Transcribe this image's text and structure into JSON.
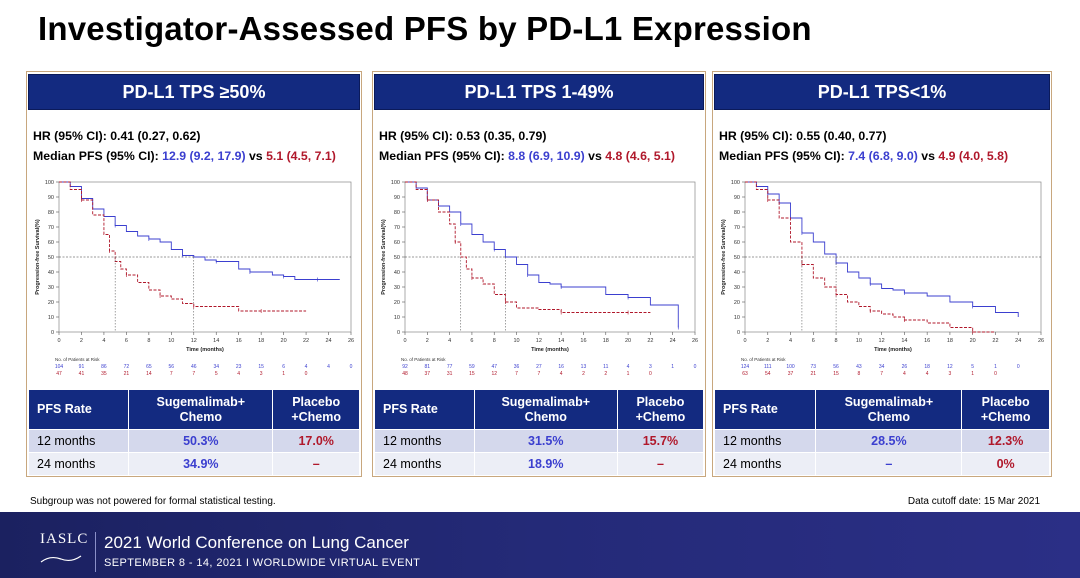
{
  "title": "Investigator-Assessed PFS by PD-L1 Expression",
  "footnote": "Subgroup was not powered for formal statistical testing.",
  "cutoff": "Data cutoff date: 15 Mar 2021",
  "banner": {
    "logo": "IASLC",
    "conference": "2021 World Conference on Lung Cancer",
    "subtitle": "SEPTEMBER 8 - 14, 2021 I WORLDWIDE VIRTUAL EVENT"
  },
  "colors": {
    "treatment": "#3b3fcf",
    "placebo": "#b0182b",
    "header": "#132a80"
  },
  "table_headers": {
    "rate": "PFS Rate",
    "suge": "Sugemalimab+\nChemo",
    "placebo": "Placebo\n+Chemo"
  },
  "panels": [
    {
      "header": "PD-L1 TPS ≥50%",
      "hr": "HR (95% CI): 0.41 (0.27, 0.62)",
      "median_label": "Median PFS (95% CI): ",
      "median_suge": "12.9 (9.2, 17.9)",
      "vs": " vs ",
      "median_placebo": "5.1 (4.5, 7.1)",
      "rows": [
        {
          "label": "12 months",
          "suge": "50.3%",
          "placebo": "17.0%"
        },
        {
          "label": "24 months",
          "suge": "34.9%",
          "placebo": "–"
        }
      ]
    },
    {
      "header": "PD-L1 TPS 1-49%",
      "hr": "HR (95% CI): 0.53 (0.35, 0.79)",
      "median_label": "Median PFS (95% CI): ",
      "median_suge": "8.8 (6.9, 10.9)",
      "vs": " vs ",
      "median_placebo": "4.8 (4.6, 5.1)",
      "rows": [
        {
          "label": "12 months",
          "suge": "31.5%",
          "placebo": "15.7%"
        },
        {
          "label": "24 months",
          "suge": "18.9%",
          "placebo": "–"
        }
      ]
    },
    {
      "header": "PD-L1 TPS<1%",
      "hr": "HR (95% CI): 0.55 (0.40, 0.77)",
      "median_label": "Median PFS (95% CI): ",
      "median_suge": "7.4 (6.8, 9.0)",
      "vs": " vs ",
      "median_placebo": "4.9 (4.0, 5.8)",
      "rows": [
        {
          "label": "12 months",
          "suge": "28.5%",
          "placebo": "12.3%"
        },
        {
          "label": "24 months",
          "suge": "–",
          "placebo": "0%"
        }
      ]
    }
  ],
  "chart_data": [
    {
      "type": "line",
      "title": "PD-L1 TPS ≥50%",
      "xlabel": "Time (months)",
      "ylabel": "Progression-free Survival(%)",
      "xlim": [
        0,
        26
      ],
      "ylim": [
        0,
        100
      ],
      "xticks": [
        0,
        2,
        4,
        6,
        8,
        10,
        12,
        14,
        16,
        18,
        20,
        22,
        24,
        26
      ],
      "yticks": [
        0,
        10,
        20,
        30,
        40,
        50,
        60,
        70,
        80,
        90,
        100
      ],
      "reference_line": 50,
      "risk_label": "No. of Patients at Risk",
      "risk_times": [
        0,
        2,
        4,
        6,
        8,
        10,
        12,
        14,
        16,
        18,
        20,
        22,
        24,
        26
      ],
      "series": [
        {
          "name": "Sugemalimab+Chemo",
          "dashed": false,
          "x": [
            0,
            1,
            2,
            3,
            4,
            5,
            6,
            7,
            8,
            9,
            10,
            11,
            12,
            13,
            14,
            15,
            16,
            17,
            18,
            19,
            20,
            21,
            22,
            23,
            24,
            25
          ],
          "y": [
            100,
            97,
            89,
            82,
            77,
            71,
            67,
            64,
            62,
            60,
            55,
            51,
            50,
            48,
            47,
            47,
            42,
            40,
            40,
            38,
            37,
            35,
            35,
            35,
            35,
            35
          ],
          "risk": [
            104,
            91,
            86,
            72,
            65,
            56,
            46,
            34,
            23,
            15,
            6,
            4,
            4,
            0
          ]
        },
        {
          "name": "Placebo+Chemo",
          "dashed": true,
          "x": [
            0,
            1,
            2,
            3,
            4,
            4.5,
            5,
            5.5,
            6,
            7,
            8,
            9,
            10,
            11,
            12,
            14,
            16,
            18,
            20,
            22
          ],
          "y": [
            100,
            95,
            88,
            78,
            65,
            54,
            47,
            42,
            38,
            33,
            28,
            24,
            22,
            19,
            17,
            17,
            14,
            14,
            14,
            14
          ],
          "risk": [
            47,
            41,
            35,
            21,
            14,
            7,
            7,
            5,
            4,
            3,
            1,
            0,
            null,
            null
          ]
        }
      ]
    },
    {
      "type": "line",
      "title": "PD-L1 TPS 1-49%",
      "xlabel": "Time (months)",
      "ylabel": "Progression-free Survival(%)",
      "xlim": [
        0,
        26
      ],
      "ylim": [
        0,
        100
      ],
      "xticks": [
        0,
        2,
        4,
        6,
        8,
        10,
        12,
        14,
        16,
        18,
        20,
        22,
        24,
        26
      ],
      "yticks": [
        0,
        10,
        20,
        30,
        40,
        50,
        60,
        70,
        80,
        90,
        100
      ],
      "reference_line": 50,
      "risk_label": "No. of Patients at Risk",
      "risk_times": [
        0,
        2,
        4,
        6,
        8,
        10,
        12,
        14,
        16,
        18,
        20,
        22,
        24,
        26
      ],
      "series": [
        {
          "name": "Sugemalimab+Chemo",
          "dashed": false,
          "x": [
            0,
            1,
            2,
            3,
            4,
            5,
            6,
            7,
            8,
            9,
            10,
            11,
            12,
            13,
            14,
            16,
            18,
            20,
            22,
            24,
            24.5
          ],
          "y": [
            100,
            96,
            88,
            84,
            80,
            72,
            65,
            60,
            55,
            50,
            45,
            38,
            33,
            32,
            30,
            30,
            25,
            23,
            18,
            18,
            3
          ],
          "risk": [
            92,
            81,
            77,
            59,
            47,
            36,
            27,
            16,
            13,
            11,
            4,
            3,
            1,
            0
          ]
        },
        {
          "name": "Placebo+Chemo",
          "dashed": true,
          "x": [
            0,
            1,
            2,
            3,
            4,
            4.5,
            5,
            5.5,
            6,
            7,
            8,
            9,
            10,
            12,
            14,
            16,
            18,
            20,
            22
          ],
          "y": [
            100,
            95,
            88,
            80,
            72,
            60,
            50,
            42,
            36,
            32,
            25,
            20,
            16,
            15,
            13,
            13,
            13,
            13,
            13
          ],
          "risk": [
            48,
            37,
            31,
            15,
            12,
            7,
            7,
            4,
            2,
            2,
            1,
            0,
            null,
            null
          ]
        }
      ]
    },
    {
      "type": "line",
      "title": "PD-L1 TPS<1%",
      "xlabel": "Time (months)",
      "ylabel": "Progression-free Survival(%)",
      "xlim": [
        0,
        26
      ],
      "ylim": [
        0,
        100
      ],
      "xticks": [
        0,
        2,
        4,
        6,
        8,
        10,
        12,
        14,
        16,
        18,
        20,
        22,
        24,
        26
      ],
      "yticks": [
        0,
        10,
        20,
        30,
        40,
        50,
        60,
        70,
        80,
        90,
        100
      ],
      "reference_line": 50,
      "risk_label": "No. of Patients at Risk",
      "risk_times": [
        0,
        2,
        4,
        6,
        8,
        10,
        12,
        14,
        16,
        18,
        20,
        22,
        24,
        26
      ],
      "series": [
        {
          "name": "Sugemalimab+Chemo",
          "dashed": false,
          "x": [
            0,
            1,
            2,
            3,
            4,
            5,
            6,
            7,
            8,
            9,
            10,
            11,
            12,
            13,
            14,
            16,
            18,
            20,
            22,
            24
          ],
          "y": [
            100,
            97,
            92,
            86,
            76,
            66,
            60,
            52,
            46,
            40,
            36,
            32,
            29,
            28,
            26,
            24,
            20,
            17,
            13,
            10
          ],
          "risk": [
            124,
            111,
            100,
            73,
            56,
            43,
            34,
            26,
            18,
            12,
            5,
            1,
            0,
            null
          ]
        },
        {
          "name": "Placebo+Chemo",
          "dashed": true,
          "x": [
            0,
            1,
            2,
            3,
            4,
            5,
            6,
            7,
            8,
            9,
            10,
            11,
            12,
            13,
            14,
            16,
            18,
            20,
            22
          ],
          "y": [
            100,
            95,
            88,
            76,
            60,
            45,
            36,
            30,
            25,
            20,
            17,
            14,
            12,
            10,
            8,
            6,
            3,
            0,
            0
          ],
          "risk": [
            63,
            54,
            37,
            21,
            15,
            8,
            7,
            4,
            4,
            3,
            1,
            0,
            null,
            null
          ]
        }
      ]
    }
  ]
}
